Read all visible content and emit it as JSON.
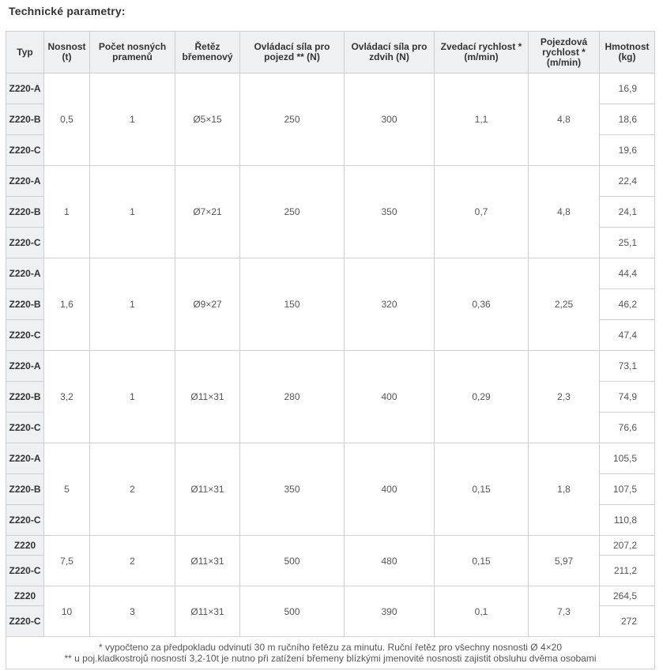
{
  "page": {
    "title": "Technické parametry:"
  },
  "table": {
    "headers": [
      "Typ",
      "Nosnost (t)",
      "Počet nosných pramenů",
      "Řetěz břemenový",
      "Ovládací síla pro pojezd ** (N)",
      "Ovládací síla pro zdvih (N)",
      "Zvedací rychlost * (m/min)",
      "Pojezdová rychlost * (m/min)",
      "Hmotnost (kg)"
    ],
    "groups": [
      {
        "nosnost": "0,5",
        "pramenu": "1",
        "retez": "Ø5×15",
        "sila_pojezd": "250",
        "sila_zdvih": "300",
        "zved_rychlost": "1,1",
        "pojezd_rychlost": "4,8",
        "variants": [
          {
            "typ": "Z220-A",
            "hmotnost": "16,9"
          },
          {
            "typ": "Z220-B",
            "hmotnost": "18,6"
          },
          {
            "typ": "Z220-C",
            "hmotnost": "19,6"
          }
        ]
      },
      {
        "nosnost": "1",
        "pramenu": "1",
        "retez": "Ø7×21",
        "sila_pojezd": "250",
        "sila_zdvih": "350",
        "zved_rychlost": "0,7",
        "pojezd_rychlost": "4,8",
        "variants": [
          {
            "typ": "Z220-A",
            "hmotnost": "22,4"
          },
          {
            "typ": "Z220-B",
            "hmotnost": "24,1"
          },
          {
            "typ": "Z220-C",
            "hmotnost": "25,1"
          }
        ]
      },
      {
        "nosnost": "1,6",
        "pramenu": "1",
        "retez": "Ø9×27",
        "sila_pojezd": "150",
        "sila_zdvih": "320",
        "zved_rychlost": "0,36",
        "pojezd_rychlost": "2,25",
        "variants": [
          {
            "typ": "Z220-A",
            "hmotnost": "44,4"
          },
          {
            "typ": "Z220-B",
            "hmotnost": "46,2"
          },
          {
            "typ": "Z220-C",
            "hmotnost": "47,4"
          }
        ]
      },
      {
        "nosnost": "3,2",
        "pramenu": "1",
        "retez": "Ø11×31",
        "sila_pojezd": "280",
        "sila_zdvih": "400",
        "zved_rychlost": "0,29",
        "pojezd_rychlost": "2,3",
        "variants": [
          {
            "typ": "Z220-A",
            "hmotnost": "73,1"
          },
          {
            "typ": "Z220-B",
            "hmotnost": "74,9"
          },
          {
            "typ": "Z220-C",
            "hmotnost": "76,6"
          }
        ]
      },
      {
        "nosnost": "5",
        "pramenu": "2",
        "retez": "Ø11×31",
        "sila_pojezd": "350",
        "sila_zdvih": "400",
        "zved_rychlost": "0,15",
        "pojezd_rychlost": "1,8",
        "variants": [
          {
            "typ": "Z220-A",
            "hmotnost": "105,5"
          },
          {
            "typ": "Z220-B",
            "hmotnost": "107,5"
          },
          {
            "typ": "Z220-C",
            "hmotnost": "110,8"
          }
        ]
      },
      {
        "nosnost": "7,5",
        "pramenu": "2",
        "retez": "Ø11×31",
        "sila_pojezd": "500",
        "sila_zdvih": "480",
        "zved_rychlost": "0,15",
        "pojezd_rychlost": "5,97",
        "variants": [
          {
            "typ": "Z220",
            "hmotnost": "207,2"
          },
          {
            "typ": "Z220-C",
            "hmotnost": "211,2"
          }
        ]
      },
      {
        "nosnost": "10",
        "pramenu": "3",
        "retez": "Ø11×31",
        "sila_pojezd": "500",
        "sila_zdvih": "390",
        "zved_rychlost": "0,1",
        "pojezd_rychlost": "7,3",
        "variants": [
          {
            "typ": "Z220",
            "hmotnost": "264,5"
          },
          {
            "typ": "Z220-C",
            "hmotnost": "272"
          }
        ]
      }
    ],
    "footnotes": [
      "* vypočteno za předpokladu odvinutí 30 m ručního řetězu za minutu. Ruční řetěz pro všechny nosnosti Ø 4×20",
      "** u poj.kladkostrojů nosností 3,2-10t je nutno při zatížení břemeny blízkými jmenovité nosnosti zajistit obsluhu dvěma osobami"
    ]
  }
}
